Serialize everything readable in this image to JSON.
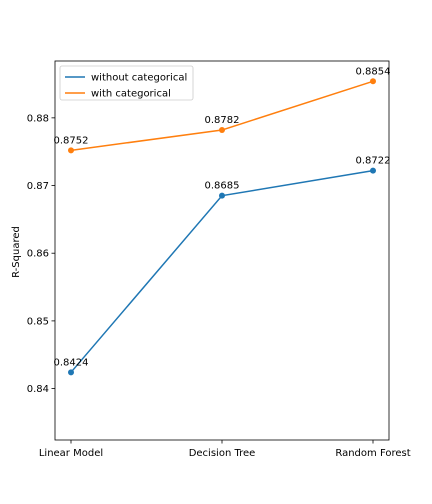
{
  "chart_data": {
    "type": "line",
    "title": "",
    "xlabel": "",
    "ylabel": "R-Squared",
    "categories": [
      "Linear Model",
      "Decision Tree",
      "Random Forest"
    ],
    "ylim": [
      0.8324,
      0.8884
    ],
    "yticks": [
      0.84,
      0.85,
      0.86,
      0.87,
      0.88
    ],
    "ytick_labels": [
      "0.84",
      "0.85",
      "0.86",
      "0.87",
      "0.88"
    ],
    "grid": false,
    "legend_position": "top-left",
    "series": [
      {
        "name": "without categorical",
        "color": "#1f77b4",
        "values": [
          0.8424,
          0.8685,
          0.8722
        ],
        "labels": [
          "0.8424",
          "0.8685",
          "0.8722"
        ]
      },
      {
        "name": "with categorical",
        "color": "#ff7f0e",
        "values": [
          0.8752,
          0.8782,
          0.8854
        ],
        "labels": [
          "0.8752",
          "0.8782",
          "0.8854"
        ]
      }
    ]
  }
}
